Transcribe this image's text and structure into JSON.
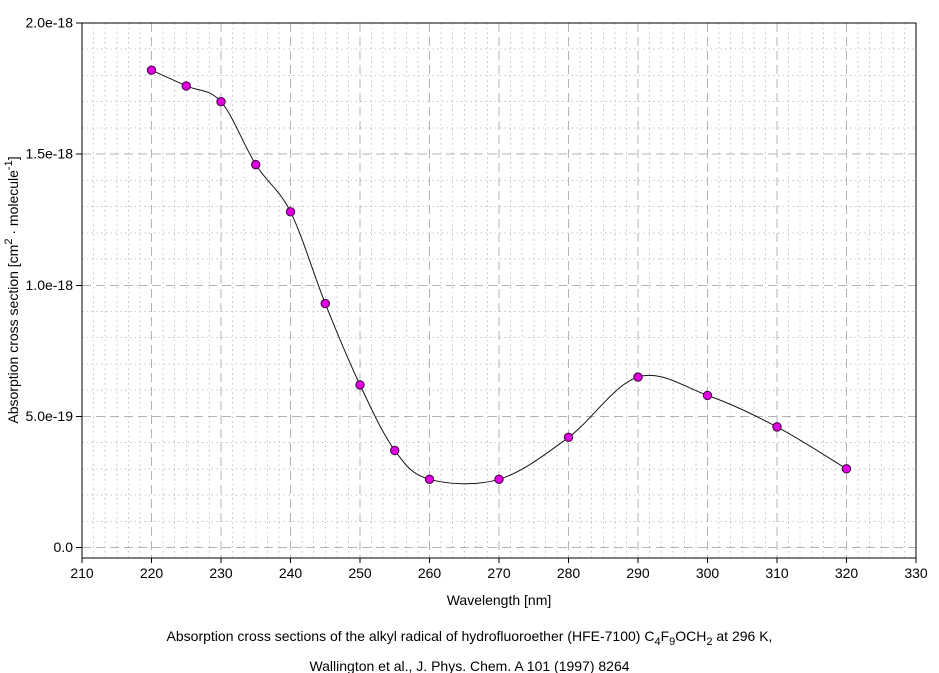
{
  "chart_data": {
    "type": "line",
    "title": "",
    "xlabel": "Wavelength [nm]",
    "ylabel": "Absorption cross section [cm2 · molecule-1]",
    "ylabel_parts": [
      {
        "t": "Absorption cross section [cm",
        "s": ""
      },
      {
        "t": "2",
        "s": "sup"
      },
      {
        "t": " · molecule",
        "s": ""
      },
      {
        "t": "-1",
        "s": "sup"
      },
      {
        "t": "]",
        "s": ""
      }
    ],
    "xlim": [
      210,
      330
    ],
    "ylim": [
      0,
      2e-18
    ],
    "xticks": [
      210,
      220,
      230,
      240,
      250,
      260,
      270,
      280,
      290,
      300,
      310,
      320,
      330
    ],
    "xtick_labels": [
      "210",
      "220",
      "230",
      "240",
      "250",
      "260",
      "270",
      "280",
      "290",
      "300",
      "310",
      "320",
      "330"
    ],
    "yticks": [
      0,
      5e-19,
      1e-18,
      1.5e-18,
      2e-18
    ],
    "ytick_labels": [
      "0.0",
      "5.0e-19",
      "1.0e-18",
      "1.5e-18",
      "2.0e-18"
    ],
    "x": [
      220,
      225,
      230,
      235,
      240,
      245,
      250,
      255,
      260,
      270,
      280,
      290,
      300,
      310,
      320
    ],
    "y": [
      1.82e-18,
      1.76e-18,
      1.7e-18,
      1.46e-18,
      1.28e-18,
      9.3e-19,
      6.2e-19,
      3.7e-19,
      2.6e-19,
      2.6e-19,
      4.2e-19,
      6.5e-19,
      5.8e-19,
      4.6e-19,
      3e-19
    ],
    "series_name": "Absorption cross section of the alkyl radical of HFE-7100 (C4F9OCH2) at 296 K",
    "grid": {
      "major": "dashed",
      "minor": "dotted",
      "x_minor_divisions_per_major": 6,
      "y_minor_step": 1e-19
    },
    "legend": null,
    "line_color": "#151515",
    "marker": {
      "shape": "circle",
      "fill": "#df00df",
      "edge": "#3f003f"
    }
  },
  "caption": {
    "line1": "Absorption cross sections of the alkyl radical of hydrofluoroether (HFE-7100) C4F9OCH2 at 296 K,",
    "line1_parts": [
      {
        "t": "Absorption cross sections of the alkyl radical of hydrofluoroether (HFE-7100) C",
        "s": ""
      },
      {
        "t": "4",
        "s": "sub"
      },
      {
        "t": "F",
        "s": ""
      },
      {
        "t": "9",
        "s": "sub"
      },
      {
        "t": "OCH",
        "s": ""
      },
      {
        "t": "2",
        "s": "sub"
      },
      {
        "t": " at 296 K,",
        "s": ""
      }
    ],
    "line2": "Wallington et al., J. Phys. Chem. A 101 (1997) 8264"
  }
}
